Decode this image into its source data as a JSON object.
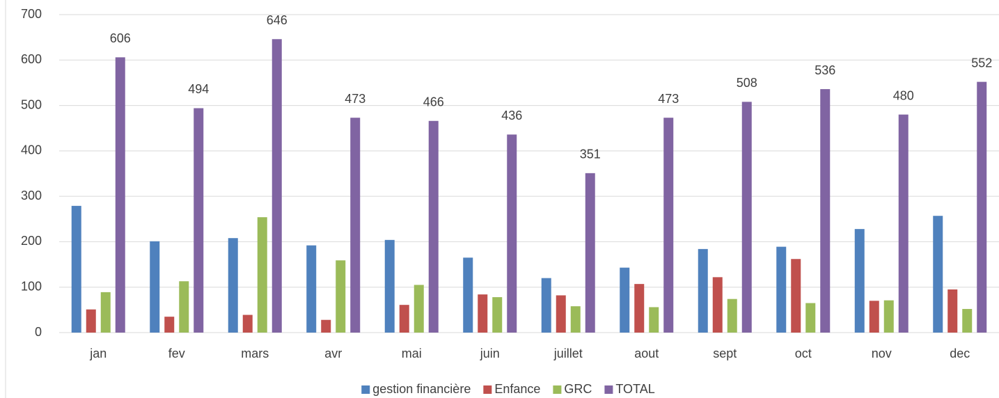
{
  "chart_data": {
    "type": "bar",
    "categories": [
      "jan",
      "fev",
      "mars",
      "avr",
      "mai",
      "juin",
      "juillet",
      "aout",
      "sept",
      "oct",
      "nov",
      "dec"
    ],
    "series": [
      {
        "name": "gestion financière",
        "color": "#4f81bd",
        "values": [
          279,
          201,
          208,
          192,
          204,
          165,
          120,
          143,
          184,
          189,
          228,
          257
        ]
      },
      {
        "name": "Enfance",
        "color": "#c0504d",
        "values": [
          51,
          35,
          39,
          28,
          61,
          84,
          82,
          107,
          122,
          162,
          70,
          95
        ]
      },
      {
        "name": "GRC",
        "color": "#9bbb59",
        "values": [
          89,
          113,
          254,
          159,
          105,
          78,
          58,
          56,
          74,
          65,
          71,
          52
        ]
      },
      {
        "name": "TOTAL",
        "color": "#8064a2",
        "values": [
          606,
          494,
          646,
          473,
          466,
          436,
          351,
          473,
          508,
          536,
          480,
          552
        ],
        "data_labels": true
      }
    ],
    "ylim": [
      0,
      700
    ],
    "yticks": [
      0,
      100,
      200,
      300,
      400,
      500,
      600,
      700
    ],
    "grid": true,
    "legend": "bottom"
  }
}
